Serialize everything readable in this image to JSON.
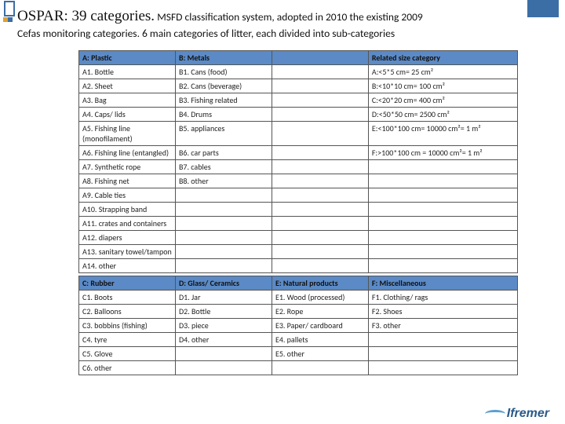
{
  "title": {
    "main": "OSPAR: 39 categories.",
    "sub1": "MSFD classification system, adopted in 2010 the existing 2009",
    "sub2": "Cefas monitoring categories. 6 main categories of litter, each divided into sub-categories"
  },
  "headers1": {
    "a": "A: Plastic",
    "b": "B: Metals",
    "c": "",
    "d": "Related size category"
  },
  "rows1": [
    [
      "A1. Bottle",
      "B1. Cans (food)",
      "",
      "A:<5*5 cm= 25 cm²"
    ],
    [
      "A2. Sheet",
      "B2. Cans (beverage)",
      "",
      "B:<10*10 cm= 100 cm²"
    ],
    [
      "A3. Bag",
      "B3. Fishing related",
      "",
      "C:<20*20 cm= 400 cm²"
    ],
    [
      "A4. Caps/ lids",
      "B4. Drums",
      "",
      "D:<50*50 cm= 2500 cm²"
    ],
    [
      "A5. Fishing line (monofilament)",
      "B5. appliances",
      "",
      "E:<100*100 cm= 10000 cm²= 1 m²"
    ],
    [
      "A6. Fishing line (entangled)",
      "B6. car parts",
      "",
      "F:>100*100 cm = 10000 cm²= 1 m²"
    ],
    [
      "A7. Synthetic rope",
      "B7. cables",
      "",
      ""
    ],
    [
      "A8. Fishing net",
      "B8. other",
      "",
      ""
    ],
    [
      "A9. Cable ties",
      "",
      "",
      ""
    ],
    [
      "A10. Strapping band",
      "",
      "",
      ""
    ],
    [
      "A11. crates and containers",
      "",
      "",
      ""
    ],
    [
      "A12. diapers",
      "",
      "",
      ""
    ],
    [
      "A13. sanitary towel/tampon",
      "",
      "",
      ""
    ],
    [
      "A14. other",
      "",
      "",
      ""
    ]
  ],
  "headers2": {
    "a": "C: Rubber",
    "b": "D: Glass/ Ceramics",
    "c": "E: Natural products",
    "d": "F: Miscellaneous"
  },
  "rows2": [
    [
      "C1. Boots",
      "D1. Jar",
      "E1. Wood (processed)",
      "F1. Clothing/ rags"
    ],
    [
      "C2. Balloons",
      "D2. Bottle",
      "E2. Rope",
      "F2. Shoes"
    ],
    [
      "C3. bobbins (fishing)",
      "D3. piece",
      "E3. Paper/ cardboard",
      "F3. other"
    ],
    [
      "C4. tyre",
      "D4. other",
      "E4. pallets",
      ""
    ],
    [
      "C5. Glove",
      "",
      "E5. other",
      ""
    ],
    [
      "C6. other",
      "",
      "",
      ""
    ]
  ],
  "footer_logo": "Ifremer"
}
